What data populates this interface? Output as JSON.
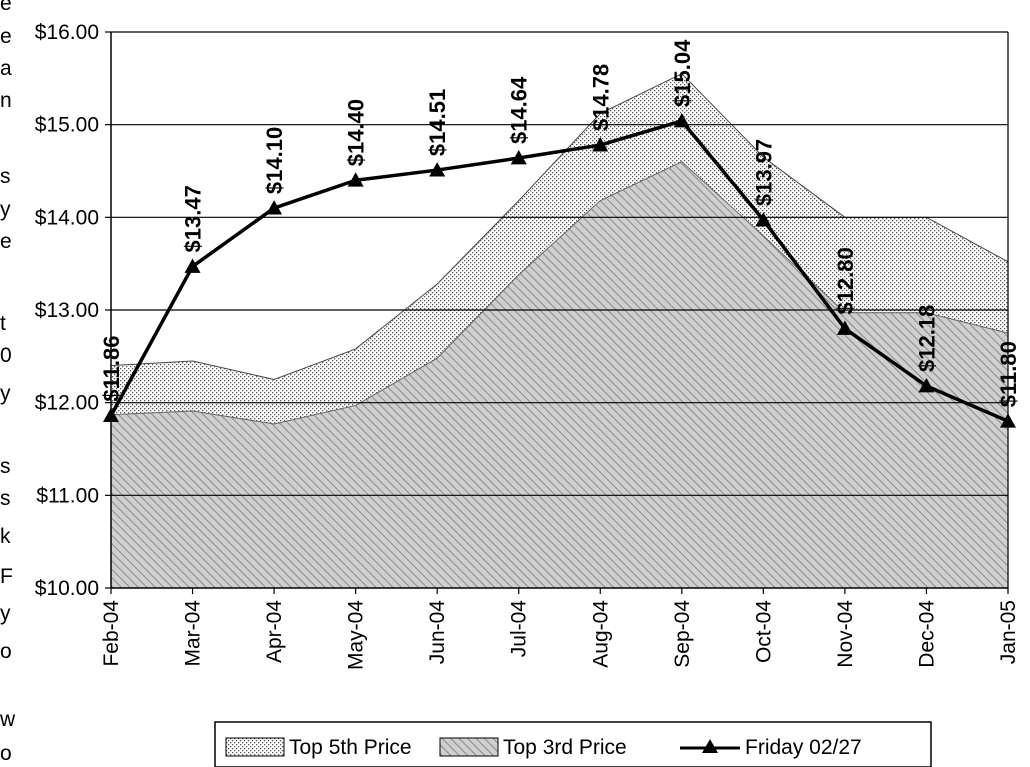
{
  "left_fragments": [
    "e",
    "e",
    "a",
    "n",
    "s",
    "y",
    "e",
    "t",
    "0",
    "y",
    "s",
    "s",
    "k",
    "F",
    "y",
    "o",
    "w",
    "o"
  ],
  "colors": {
    "line": "#000000",
    "gridline": "#000000",
    "top3_fill_bg": "#c8c8c8",
    "top3_hatch": "#8a8a8a",
    "top5_dots": "#555555",
    "background": "#ffffff"
  },
  "chart_data": {
    "type": "area",
    "title": "",
    "xlabel": "",
    "ylabel": "",
    "categories": [
      "Feb-04",
      "Mar-04",
      "Apr-04",
      "May-04",
      "Jun-04",
      "Jul-04",
      "Aug-04",
      "Sep-04",
      "Oct-04",
      "Nov-04",
      "Dec-04",
      "Jan-05"
    ],
    "ylim": [
      10,
      16
    ],
    "yticks": [
      10,
      11,
      12,
      13,
      14,
      15,
      16
    ],
    "ytick_labels": [
      "$10.00",
      "$11.00",
      "$12.00",
      "$13.00",
      "$14.00",
      "$15.00",
      "$16.00"
    ],
    "grid": true,
    "legend_position": "bottom",
    "series": [
      {
        "name": "Top 5th Price",
        "type": "area",
        "pattern": "dots",
        "values": [
          12.4,
          12.45,
          12.25,
          12.58,
          13.28,
          14.18,
          15.12,
          15.55,
          14.65,
          14.0,
          14.0,
          13.52
        ]
      },
      {
        "name": "Top 3rd Price",
        "type": "area",
        "pattern": "diagonal-hatch",
        "values": [
          11.87,
          11.91,
          11.77,
          11.97,
          12.48,
          13.38,
          14.18,
          14.6,
          13.8,
          12.97,
          12.97,
          12.75
        ]
      },
      {
        "name": "Friday 02/27",
        "type": "line",
        "marker": "triangle",
        "values": [
          11.86,
          13.47,
          14.1,
          14.4,
          14.51,
          14.64,
          14.78,
          15.04,
          13.97,
          12.8,
          12.18,
          11.8
        ],
        "data_labels": [
          "$11.86",
          "$13.47",
          "$14.10",
          "$14.40",
          "$14.51",
          "$14.64",
          "$14.78",
          "$15.04",
          "$13.97",
          "$12.80",
          "$12.18",
          "$11.80"
        ]
      }
    ]
  }
}
